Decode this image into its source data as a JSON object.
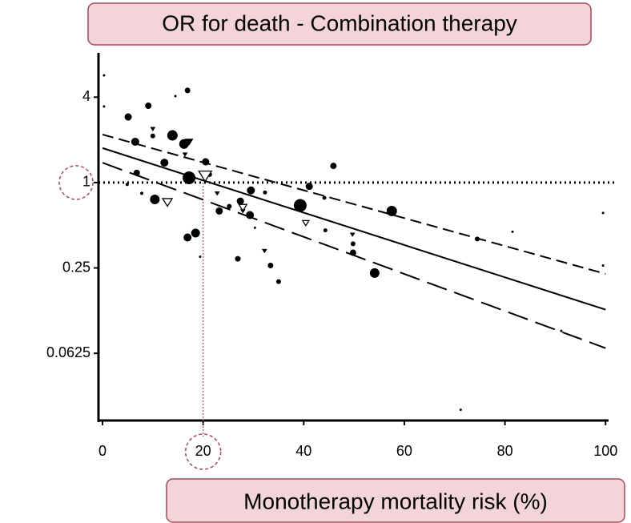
{
  "chart_data": {
    "type": "scatter",
    "title": "OR for death - Combination therapy",
    "x_label": "Monotherapy mortality risk (%)",
    "xlim": [
      -0.8,
      100.6
    ],
    "xticks": [
      0,
      20,
      40,
      60,
      80,
      100
    ],
    "ylim": [
      0.021,
      8
    ],
    "yticks": [
      4,
      1,
      0.25,
      0.0625
    ],
    "ylog": 2,
    "color": "#000000",
    "series": [
      {
        "marker": "circle",
        "x": [
          0.3,
          0.3,
          5.1,
          9.1,
          14.5,
          16.9,
          6.5,
          13.9,
          10.0,
          16.2,
          12.3,
          20.5,
          17.2,
          21.3,
          6.8,
          4.9,
          7.8,
          10.4,
          16.9,
          18.5,
          19.4,
          23.2,
          25.2,
          27.4,
          29.3,
          29.5,
          32.3,
          26.9,
          30.3,
          33.4,
          39.3,
          41.1,
          44.1,
          45.9,
          44.3,
          49.8,
          49.8,
          54.1,
          57.5,
          35.0,
          74.5,
          81.5,
          99.5,
          99.5,
          71.2,
          91.2
        ],
        "y": [
          5.7,
          3.44,
          2.9,
          3.48,
          4.07,
          4.46,
          1.94,
          2.15,
          2.13,
          1.87,
          1.38,
          1.4,
          1.08,
          1.14,
          1.17,
          0.97,
          0.84,
          0.76,
          0.41,
          0.44,
          0.3,
          0.63,
          0.68,
          0.74,
          0.59,
          0.88,
          0.85,
          0.29,
          0.48,
          0.26,
          0.69,
          0.94,
          0.78,
          1.31,
          0.46,
          0.37,
          0.32,
          0.23,
          0.63,
          0.2,
          0.4,
          0.45,
          0.61,
          0.26,
          0.025,
          0.09
        ],
        "sizes": [
          1.5,
          1.5,
          4.5,
          4,
          1.5,
          3.5,
          5,
          6.5,
          3,
          6,
          5,
          4.5,
          8,
          3,
          4,
          2,
          2,
          6,
          5,
          5.5,
          1.5,
          4.5,
          3,
          4.5,
          5,
          5,
          2.5,
          3.5,
          1.5,
          3.5,
          8,
          4.5,
          2.5,
          4,
          2.5,
          3,
          4,
          6,
          6.5,
          3,
          3,
          1.5,
          1.5,
          1.5,
          1.5,
          1.5
        ]
      },
      {
        "marker": "triangle-down",
        "x": [
          10.0,
          17.2,
          16.4,
          22.8,
          27.9,
          32.2,
          49.7
        ],
        "y": [
          2.39,
          1.94,
          1.58,
          0.84,
          0.63,
          0.33,
          0.43
        ],
        "sizes": [
          3,
          5,
          3,
          3,
          3,
          3,
          3
        ]
      },
      {
        "marker": "triangle-down-open",
        "x": [
          12.9,
          20.4,
          27.9,
          40.4
        ],
        "y": [
          0.73,
          1.12,
          0.67,
          0.52
        ],
        "sizes": [
          6,
          8,
          5,
          4
        ]
      }
    ],
    "lines": [
      {
        "dash": "solid",
        "x": [
          0,
          100
        ],
        "y": [
          1.75,
          0.127
        ]
      },
      {
        "dash": "short",
        "x": [
          0,
          100
        ],
        "y": [
          2.18,
          0.227
        ]
      },
      {
        "dash": "long",
        "x": [
          0,
          100
        ],
        "y": [
          1.38,
          0.068
        ]
      }
    ],
    "hline": 1,
    "highlight": {
      "x": 20,
      "y": 1
    }
  }
}
